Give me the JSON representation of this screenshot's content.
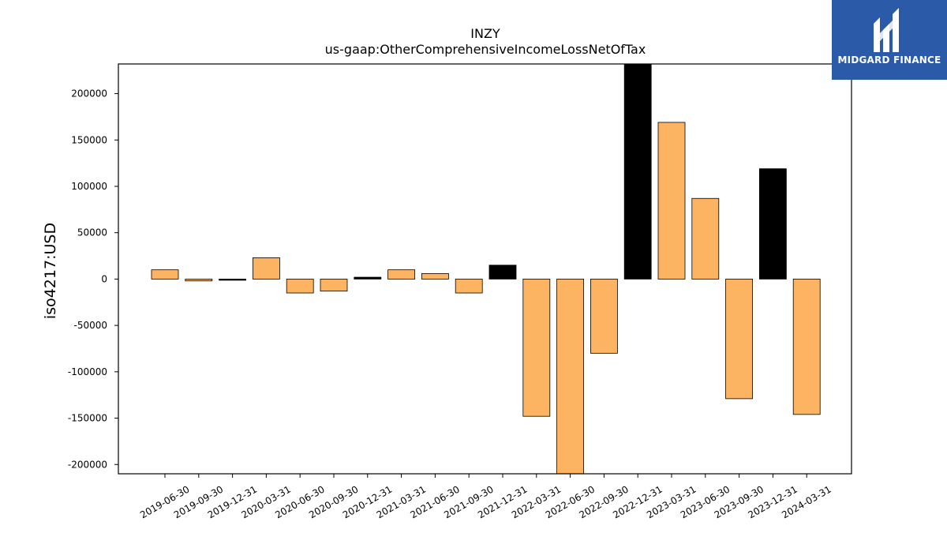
{
  "chart_data": {
    "type": "bar",
    "title": "INZY",
    "subtitle": "us-gaap:OtherComprehensiveIncomeLossNetOfTax",
    "xlabel": "",
    "ylabel": "iso4217:USD",
    "ylim": [
      -210000,
      232000
    ],
    "yticks": [
      -200000,
      -150000,
      -100000,
      -50000,
      0,
      50000,
      100000,
      150000,
      200000
    ],
    "grid": false,
    "categories": [
      "2019-06-30",
      "2019-09-30",
      "2019-12-31",
      "2020-03-31",
      "2020-06-30",
      "2020-09-30",
      "2020-12-31",
      "2021-03-31",
      "2021-06-30",
      "2021-09-30",
      "2021-12-31",
      "2022-03-31",
      "2022-06-30",
      "2022-09-30",
      "2022-12-31",
      "2023-03-31",
      "2023-06-30",
      "2023-09-30",
      "2023-12-31",
      "2024-03-31"
    ],
    "values": [
      10000,
      -2000,
      -1000,
      23000,
      -15000,
      -13000,
      2000,
      10000,
      6000,
      -15000,
      15000,
      -148000,
      -220000,
      -80000,
      240000,
      169000,
      87000,
      -129000,
      119000,
      -146000
    ],
    "bar_colors": [
      "#fdb462",
      "#fdb462",
      "#000000",
      "#fdb462",
      "#fdb462",
      "#fdb462",
      "#000000",
      "#fdb462",
      "#fdb462",
      "#fdb462",
      "#000000",
      "#fdb462",
      "#fdb462",
      "#fdb462",
      "#000000",
      "#fdb462",
      "#fdb462",
      "#fdb462",
      "#000000",
      "#fdb462"
    ]
  },
  "logo": {
    "text": "MIDGARD FINANCE",
    "background": "#2a5aa8"
  }
}
